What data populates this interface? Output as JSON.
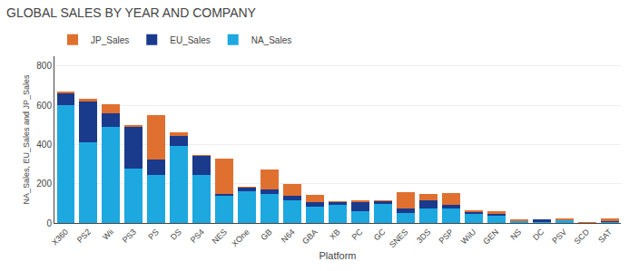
{
  "chart_data": {
    "type": "bar",
    "title": "GLOBAL SALES BY YEAR AND COMPANY",
    "categories": [
      "X360",
      "PS2",
      "Wii",
      "PS3",
      "PS",
      "DS",
      "PS4",
      "NES",
      "XOne",
      "GB",
      "N64",
      "GBA",
      "XB",
      "PC",
      "GC",
      "SNES",
      "3DS",
      "PSP",
      "WiiU",
      "GEN",
      "NS",
      "DC",
      "PSV",
      "SCD",
      "SAT"
    ],
    "series": [
      {
        "name": "NA_Sales",
        "color": "#1da8e0",
        "values": [
          601,
          410,
          491,
          276,
          246,
          392,
          247,
          142,
          162,
          146,
          117,
          82,
          94,
          58,
          99,
          49,
          76,
          73,
          46,
          36,
          11,
          9,
          15,
          0,
          8
        ]
      },
      {
        "name": "EU_Sales",
        "color": "#1a3a8c",
        "values": [
          62,
          210,
          70,
          215,
          76,
          53,
          96,
          7,
          21,
          23,
          23,
          25,
          13,
          52,
          12,
          26,
          38,
          19,
          14,
          14,
          2,
          8,
          3,
          0,
          5
        ]
      },
      {
        "name": "JP_Sales",
        "color": "#e07030",
        "values": [
          3,
          15,
          46,
          9,
          229,
          16,
          3,
          180,
          1,
          103,
          57,
          35,
          1,
          6,
          2,
          80,
          36,
          60,
          1,
          8,
          5,
          0,
          1,
          2,
          8
        ]
      }
    ],
    "stacked": true,
    "xlabel": "Platform",
    "ylabel": "NA_Sales, EU_Sales and JP_Sales",
    "ylim": [
      0,
      850
    ],
    "yticks": [
      0,
      200,
      400,
      600,
      800
    ],
    "grid": true,
    "legend": "top left"
  }
}
